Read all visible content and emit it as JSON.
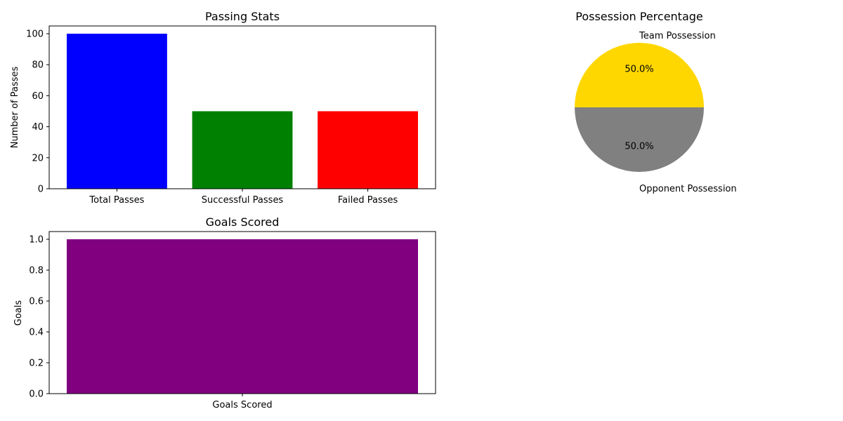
{
  "chart_data": [
    {
      "type": "bar",
      "title": "Passing Stats",
      "xlabel": "",
      "ylabel": "Number of Passes",
      "categories": [
        "Total Passes",
        "Successful Passes",
        "Failed Passes"
      ],
      "values": [
        100,
        50,
        50
      ],
      "colors": [
        "#0000ff",
        "#008000",
        "#ff0000"
      ],
      "ylim": [
        0,
        105
      ],
      "yticks": [
        0,
        20,
        40,
        60,
        80,
        100
      ],
      "ytick_labels": [
        "0",
        "20",
        "40",
        "60",
        "80",
        "100"
      ],
      "grid": false
    },
    {
      "type": "pie",
      "title": "Possession Percentage",
      "labels": [
        "Team Possession",
        "Opponent Possession"
      ],
      "values": [
        50,
        50
      ],
      "percent_labels": [
        "50.0%",
        "50.0%"
      ],
      "colors": [
        "#ffd700",
        "#808080"
      ]
    },
    {
      "type": "bar",
      "title": "Goals Scored",
      "xlabel": "",
      "ylabel": "Goals",
      "categories": [
        "Goals Scored"
      ],
      "values": [
        1
      ],
      "colors": [
        "#800080"
      ],
      "ylim": [
        0,
        1.05
      ],
      "yticks": [
        0,
        0.2,
        0.4,
        0.6,
        0.8,
        1.0
      ],
      "ytick_labels": [
        "0.0",
        "0.2",
        "0.4",
        "0.6",
        "0.8",
        "1.0"
      ],
      "grid": false
    }
  ]
}
